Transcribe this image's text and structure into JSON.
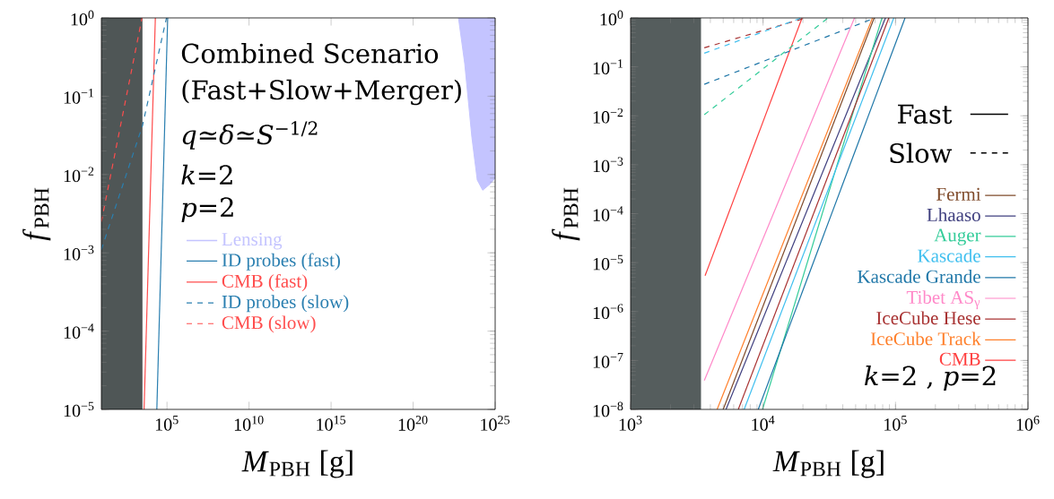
{
  "chart_data": [
    {
      "type": "line",
      "xlabel": "*M*$_{PBH}$ [g]",
      "ylabel": "*f*$_{PBH}$",
      "log": "xy",
      "xlim": [
        10,
        1e+25
      ],
      "ylim": [
        1e-05,
        1
      ],
      "xticks": [
        {
          "value": 100000.0,
          "label": "10$^{5}$"
        },
        {
          "value": 10000000000.0,
          "label": "10$^{10}$"
        },
        {
          "value": 1000000000000000.0,
          "label": "10$^{15}$"
        },
        {
          "value": 1e+20,
          "label": "10$^{20}$"
        },
        {
          "value": 1e+25,
          "label": "10$^{25}$"
        }
      ],
      "yticks": [
        {
          "value": 1e-05,
          "label": "10$^{−5}$"
        },
        {
          "value": 0.0001,
          "label": "10$^{−4}$"
        },
        {
          "value": 0.001,
          "label": "10$^{−3}$"
        },
        {
          "value": 0.01,
          "label": "10$^{−2}$"
        },
        {
          "value": 0.1,
          "label": "10$^{−1}$"
        },
        {
          "value": 1,
          "label": "10$^{0}$"
        }
      ],
      "legend": "left",
      "annotations": [
        "Combined Scenario",
        "(Fast+Slow+Merger)",
        "*q*≃*δ*≃*S*$^{−1/2}$",
        "*k*=2",
        "*p*=2"
      ],
      "bands": [
        {
          "axis": "x",
          "from": 10,
          "to": 3200,
          "color": "#4f5656"
        }
      ],
      "series": [
        {
          "name": "Lensing",
          "type": "area",
          "color": "#c4c4ff",
          "x": [
            5.8e+22,
            1.4e+23,
            3.8e+23,
            8.1e+23,
            1.74e+24,
            4.7e+24,
            1e+25,
            1e+25
          ],
          "values": [
            1,
            0.26,
            0.03,
            0.0085,
            0.0063,
            0.0075,
            0.009,
            1
          ]
        },
        {
          "name": "ID probes (fast)",
          "color": "#2a7fb0",
          "x": [
            24000.0,
            110000.0
          ],
          "values": [
            1e-05,
            1
          ]
        },
        {
          "name": "CMB (fast)",
          "color": "#ff4d4d",
          "x": [
            4000.0,
            19500.0
          ],
          "values": [
            1e-05,
            1
          ]
        },
        {
          "name": "ID probes (slow)",
          "color": "#2a7fb0",
          "line_style": "dashed",
          "x": [
            10,
            3200,
            93000.0
          ],
          "values": [
            0.0011,
            0.042,
            1
          ]
        },
        {
          "name": "CMB (slow)",
          "color": "#ff4d4d",
          "line_style": "dashed",
          "x": [
            10,
            3000
          ],
          "values": [
            0.0025,
            1
          ]
        }
      ]
    },
    {
      "type": "line",
      "xlabel": "*M*$_{PBH}$ [g]",
      "ylabel": "*f*$_{PBH}$",
      "log": "xy",
      "xlim": [
        1000,
        1000000.0
      ],
      "ylim": [
        1e-08,
        1
      ],
      "xticks": [
        {
          "value": 1000.0,
          "label": "10$^{3}$"
        },
        {
          "value": 10000.0,
          "label": "10$^{4}$"
        },
        {
          "value": 100000.0,
          "label": "10$^{5}$"
        },
        {
          "value": 1000000.0,
          "label": "10$^{6}$"
        }
      ],
      "yticks": [
        {
          "value": 1e-08,
          "label": "10$^{−8}$"
        },
        {
          "value": 1e-07,
          "label": "10$^{−7}$"
        },
        {
          "value": 1e-06,
          "label": "10$^{−6}$"
        },
        {
          "value": 1e-05,
          "label": "10$^{−5}$"
        },
        {
          "value": 0.0001,
          "label": "10$^{−4}$"
        },
        {
          "value": 0.001,
          "label": "10$^{−3}$"
        },
        {
          "value": 0.01,
          "label": "10$^{−2}$"
        },
        {
          "value": 0.1,
          "label": "10$^{−1}$"
        },
        {
          "value": 1,
          "label": "10$^{0}$"
        }
      ],
      "legend": "right",
      "annotations": [
        "Fast",
        "Slow",
        "*k*=2 , *p*=2"
      ],
      "bands": [
        {
          "axis": "x",
          "from": 1000,
          "to": 3400,
          "color": "#555d5d"
        }
      ],
      "series": [
        {
          "name": "Fermi",
          "color": "#7f4a2a",
          "x": [
            5000,
            69000.0
          ],
          "values": [
            1e-08,
            1
          ]
        },
        {
          "name": "Lhaaso",
          "color": "#3f3f7f",
          "x": [
            5250,
            84000.0
          ],
          "values": [
            1e-08,
            1
          ]
        },
        {
          "name": "Auger",
          "color": "#33cc99",
          "x": [
            9900,
            79000.0
          ],
          "values": [
            1e-08,
            1
          ]
        },
        {
          "name": "Kascade",
          "color": "#3fbfef",
          "x": [
            7200,
            97000.0
          ],
          "values": [
            1e-08,
            1
          ]
        },
        {
          "name": "Kascade Grande",
          "color": "#1f77a8",
          "x": [
            9200,
            118000.0
          ],
          "values": [
            1e-08,
            1
          ]
        },
        {
          "name": "Tibet AS$_{γ}$",
          "color": "#ff88c8",
          "x": [
            3600,
            49000.0
          ],
          "values": [
            3.9e-08,
            1
          ]
        },
        {
          "name": "IceCube Hese",
          "color": "#a83232",
          "x": [
            6500,
            89000.0
          ],
          "values": [
            1e-08,
            1
          ]
        },
        {
          "name": "IceCube Track",
          "color": "#ff7f2a",
          "x": [
            4500,
            67000.0
          ],
          "values": [
            1e-08,
            1
          ]
        },
        {
          "name": "CMB",
          "color": "#ff4040",
          "x": [
            3650,
            19700.0
          ],
          "values": [
            5.4e-06,
            1
          ]
        },
        {
          "color": "#a83232",
          "line_style": "dashed",
          "x": [
            3600,
            21000.0
          ],
          "values": [
            0.245,
            1
          ]
        },
        {
          "color": "#3fbfef",
          "line_style": "dashed",
          "x": [
            3600,
            19500.0
          ],
          "values": [
            0.19,
            1
          ]
        },
        {
          "color": "#1f77a8",
          "line_style": "dashed",
          "x": [
            3600,
            70000.0
          ],
          "values": [
            0.044,
            1
          ]
        },
        {
          "color": "#33cc99",
          "line_style": "dashed",
          "x": [
            3600,
            31000.0
          ],
          "values": [
            0.0105,
            1
          ]
        }
      ]
    }
  ]
}
